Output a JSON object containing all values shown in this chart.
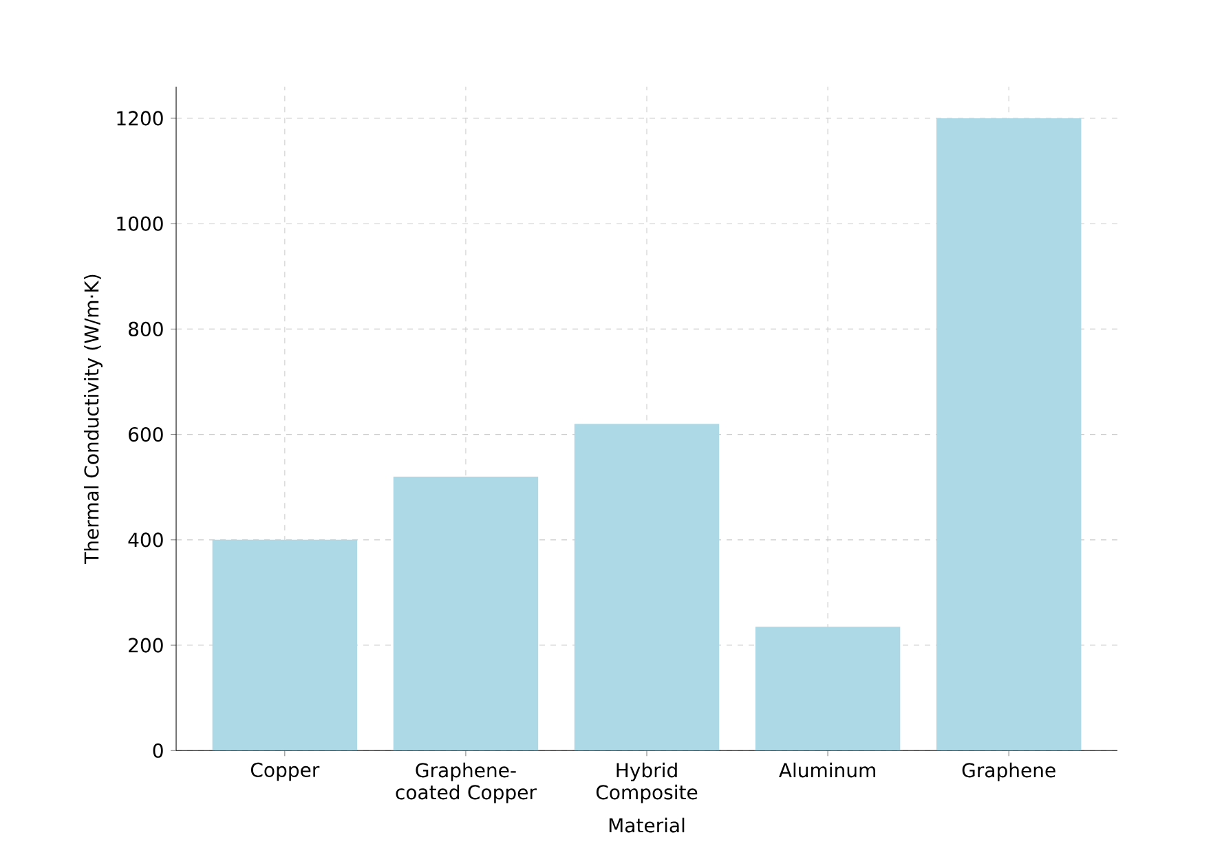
{
  "chart_data": {
    "type": "bar",
    "xlabel": "Material",
    "ylabel": "Thermal Conductivity (W/m·K)",
    "categories": [
      "Copper",
      "Graphene-coated Copper",
      "Hybrid Composite",
      "Aluminum",
      "Graphene"
    ],
    "values": [
      400,
      520,
      620,
      235,
      1200
    ],
    "color": "#add8e6",
    "ylim": [
      0,
      1260
    ],
    "yticks": [
      0,
      200,
      400,
      600,
      800,
      1000,
      1200
    ],
    "grid": true
  }
}
